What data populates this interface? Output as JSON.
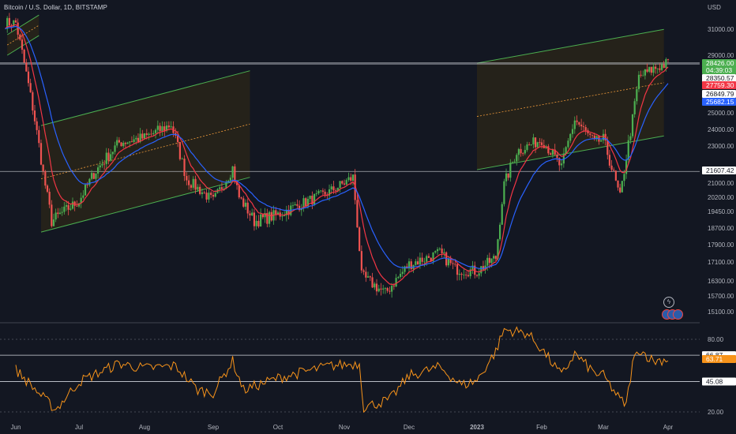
{
  "header": {
    "title": "Bitcoin / U.S. Dollar, 1D, BITSTAMP",
    "currency": "USD"
  },
  "icons": {
    "bolt": "lightning-icon",
    "flags": "us-flag-icon"
  },
  "colors": {
    "background": "#131722",
    "up": "#26a69a",
    "up_bright": "#4caf50",
    "down": "#ef5350",
    "ema_fast": "#f23645",
    "ema_slow": "#2962ff",
    "rsi": "#f7931a",
    "channel_fill": "#2b2519",
    "channel_line": "#4caf50",
    "hline": "#d1d4dc"
  },
  "chart_data": [
    {
      "type": "candlestick",
      "symbol": "Bitcoin / U.S. Dollar",
      "interval": "1D",
      "exchange": "BITSTAMP",
      "x_tick_labels": [
        "Jun",
        "Jul",
        "Aug",
        "Sep",
        "Oct",
        "Nov",
        "Dec",
        "2023",
        "Feb",
        "Mar",
        "Apr"
      ],
      "y_axis": {
        "scale": "log",
        "tick_labels": [
          "31000.00",
          "29000.00",
          "25000.00",
          "24000.00",
          "23000.00",
          "21000.00",
          "20200.00",
          "19450.00",
          "18700.00",
          "17900.00",
          "17100.00",
          "16300.00",
          "15700.00",
          "15100.00"
        ]
      },
      "price_labels": [
        {
          "value": "28426.00",
          "color": "#4caf50"
        },
        {
          "value": "04:39:03",
          "color": "#4caf50"
        },
        {
          "value": "28350.57",
          "color": "#ffffff"
        },
        {
          "value": "27759.30",
          "color": "#f23645"
        },
        {
          "value": "26849.79",
          "color": "#ffffff"
        },
        {
          "value": "25682.15",
          "color": "#2962ff"
        },
        {
          "value": "21607.42",
          "color": "#ffffff"
        }
      ],
      "horizontal_levels": [
        28426,
        28350.57,
        21607.42
      ],
      "series": [
        {
          "name": "Price",
          "anchors": [
            [
              "Jun",
              31500
            ],
            [
              "Jun 14",
              21500
            ],
            [
              "Jun 18",
              19000
            ],
            [
              "Jul",
              20000
            ],
            [
              "Jul 8",
              21500
            ],
            [
              "Jul 20",
              23200
            ],
            [
              "Aug",
              23500
            ],
            [
              "Aug 13",
              24300
            ],
            [
              "Aug 20",
              21200
            ],
            [
              "Sep",
              20000
            ],
            [
              "Sep 10",
              21800
            ],
            [
              "Sep 13",
              20200
            ],
            [
              "Sep 20",
              19000
            ],
            [
              "Oct",
              19300
            ],
            [
              "Oct 25",
              20500
            ],
            [
              "Nov 5",
              21300
            ],
            [
              "Nov 9",
              16500
            ],
            [
              "Nov 20",
              15800
            ],
            [
              "Dec",
              17000
            ],
            [
              "Dec 15",
              17500
            ],
            [
              "Dec 22",
              16800
            ],
            [
              "2023",
              16700
            ],
            [
              "Jan 10",
              17300
            ],
            [
              "Jan 14",
              20900
            ],
            [
              "Jan 20",
              22700
            ],
            [
              "Feb",
              23400
            ],
            [
              "Feb 10",
              21800
            ],
            [
              "Feb 16",
              24600
            ],
            [
              "Feb 25",
              23200
            ],
            [
              "Mar",
              23400
            ],
            [
              "Mar 9",
              20200
            ],
            [
              "Mar 15",
              24600
            ],
            [
              "Mar 18",
              27400
            ],
            [
              "Mar 25",
              28000
            ],
            [
              "Apr",
              28426
            ]
          ]
        },
        {
          "name": "EMA fast",
          "color": "#f23645",
          "last": 27759.3
        },
        {
          "name": "EMA slow",
          "color": "#2962ff",
          "last": 25682.15
        }
      ],
      "channels": [
        {
          "from": "May 28",
          "to": "Jun 12",
          "lower_start": 29000,
          "lower_end": 30500
        },
        {
          "from": "Jun 13",
          "to": "Sep 18",
          "lower_start": 18500,
          "lower_end": 21300
        },
        {
          "from": "Jan 1",
          "to": "Mar 30",
          "lower_start": 21700,
          "lower_end": 23600
        }
      ]
    },
    {
      "type": "line",
      "name": "RSI",
      "y_tick_labels": [
        "80.00",
        "20.00"
      ],
      "levels": [
        {
          "value": "66.87",
          "color": "#ffffff"
        },
        {
          "value": "63.71",
          "color": "#f7931a"
        },
        {
          "value": "45.08",
          "color": "#ffffff"
        }
      ],
      "ylim": [
        20,
        80
      ],
      "anchors": [
        [
          "Jun",
          55
        ],
        [
          "Jun 15",
          30
        ],
        [
          "Jun 20",
          22
        ],
        [
          "Jul",
          45
        ],
        [
          "Jul 20",
          60
        ],
        [
          "Aug",
          56
        ],
        [
          "Aug 15",
          58
        ],
        [
          "Aug 25",
          38
        ],
        [
          "Sep",
          36
        ],
        [
          "Sep 10",
          62
        ],
        [
          "Sep 15",
          38
        ],
        [
          "Oct",
          48
        ],
        [
          "Oct 25",
          58
        ],
        [
          "Nov 8",
          60
        ],
        [
          "Nov 10",
          24
        ],
        [
          "Nov 22",
          30
        ],
        [
          "Dec",
          50
        ],
        [
          "Dec 15",
          57
        ],
        [
          "Dec 25",
          42
        ],
        [
          "2023",
          46
        ],
        [
          "Jan 10",
          70
        ],
        [
          "Jan 14",
          88
        ],
        [
          "Jan 25",
          85
        ],
        [
          "Feb",
          72
        ],
        [
          "Feb 10",
          50
        ],
        [
          "Feb 16",
          68
        ],
        [
          "Feb 25",
          52
        ],
        [
          "Mar",
          50
        ],
        [
          "Mar 9",
          30
        ],
        [
          "Mar 12",
          26
        ],
        [
          "Mar 15",
          60
        ],
        [
          "Mar 18",
          72
        ],
        [
          "Mar 25",
          62
        ],
        [
          "Apr",
          63.71
        ]
      ]
    }
  ]
}
